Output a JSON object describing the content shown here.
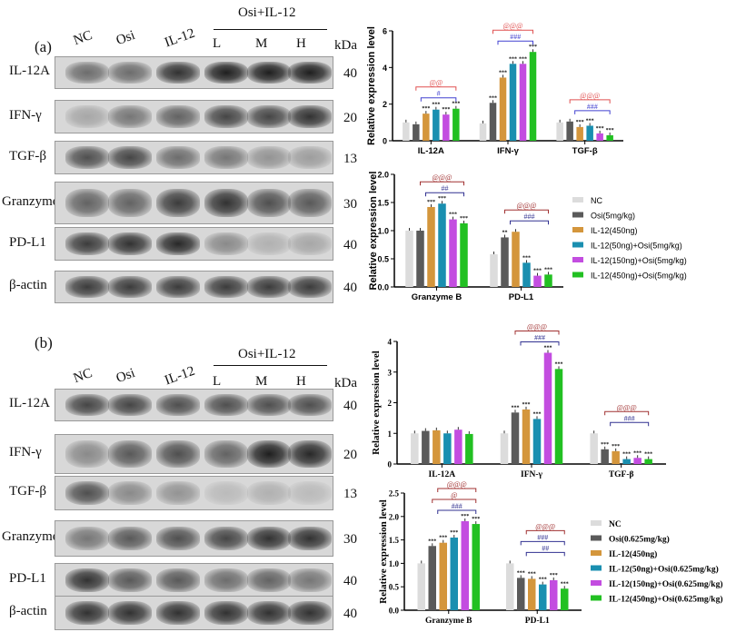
{
  "panels": [
    {
      "tag": "(a)",
      "lanes": [
        "NC",
        "Osi",
        "IL-12",
        "L",
        "M",
        "H"
      ],
      "group_header": "Osi+IL-12",
      "kda": "kDa",
      "rows": [
        {
          "name": "IL-12A",
          "kda": "40",
          "intensity": [
            0.55,
            0.55,
            0.85,
            0.95,
            0.95,
            0.95
          ]
        },
        {
          "name": "IFN-γ",
          "kda": "20",
          "intensity": [
            0.25,
            0.5,
            0.6,
            0.75,
            0.75,
            0.85
          ]
        },
        {
          "name": "TGF-β",
          "kda": "13",
          "intensity": [
            0.7,
            0.75,
            0.55,
            0.5,
            0.35,
            0.3
          ]
        },
        {
          "name": "Granzyme B",
          "kda": "30",
          "intensity": [
            0.6,
            0.6,
            0.8,
            0.85,
            0.7,
            0.65
          ]
        },
        {
          "name": "PD-L1",
          "kda": "40",
          "intensity": [
            0.8,
            0.85,
            0.9,
            0.4,
            0.2,
            0.25
          ]
        },
        {
          "name": "β-actin",
          "kda": "40",
          "intensity": [
            0.8,
            0.8,
            0.8,
            0.8,
            0.8,
            0.8
          ]
        }
      ]
    },
    {
      "tag": "(b)",
      "lanes": [
        "NC",
        "Osi",
        "IL-12",
        "L",
        "M",
        "H"
      ],
      "group_header": "Osi+IL-12",
      "kda": "kDa",
      "rows": [
        {
          "name": "IL-12A",
          "kda": "40",
          "intensity": [
            0.75,
            0.75,
            0.7,
            0.7,
            0.7,
            0.7
          ]
        },
        {
          "name": "IFN-γ",
          "kda": "20",
          "intensity": [
            0.4,
            0.65,
            0.7,
            0.6,
            0.95,
            0.9
          ]
        },
        {
          "name": "TGF-β",
          "kda": "13",
          "intensity": [
            0.7,
            0.4,
            0.35,
            0.15,
            0.2,
            0.15
          ]
        },
        {
          "name": "Granzyme B",
          "kda": "30",
          "intensity": [
            0.5,
            0.65,
            0.7,
            0.75,
            0.85,
            0.85
          ]
        },
        {
          "name": "PD-L1",
          "kda": "40",
          "intensity": [
            0.85,
            0.65,
            0.65,
            0.55,
            0.6,
            0.5
          ]
        },
        {
          "name": "β-actin",
          "kda": "40",
          "intensity": [
            0.85,
            0.85,
            0.85,
            0.85,
            0.85,
            0.85
          ]
        }
      ]
    }
  ],
  "colors": [
    "#dcdcdc",
    "#5a5a5a",
    "#d4963c",
    "#1a8fb0",
    "#c34de0",
    "#22c022"
  ],
  "chart_data": [
    {
      "type": "bar",
      "ylabel": "Relative expression level",
      "ylim": [
        0,
        6
      ],
      "yticks": [
        "0",
        "2",
        "4",
        "6"
      ],
      "categories": [
        "IL-12A",
        "IFN-γ",
        "TGF-β"
      ],
      "series": [
        [
          1,
          0.9,
          1.48,
          1.7,
          1.43,
          1.75
        ],
        [
          0.95,
          2.07,
          3.45,
          4.2,
          4.2,
          4.85
        ],
        [
          1,
          1.05,
          0.75,
          0.82,
          0.4,
          0.3
        ]
      ],
      "stars": [
        [
          "",
          "",
          "***",
          "***",
          "***",
          "***"
        ],
        [
          "",
          "***",
          "***",
          "***",
          "***",
          "***"
        ],
        [
          "",
          "",
          "***",
          "***",
          "***",
          "***"
        ]
      ],
      "brackets": [
        [
          {
            "label": "@@",
            "color": "#e05050"
          },
          {
            "label": "#",
            "color": "#4040d0"
          }
        ],
        [
          {
            "label": "@@@",
            "color": "#e05050"
          },
          {
            "label": "###",
            "color": "#4040d0"
          }
        ],
        [
          {
            "label": "@@@",
            "color": "#e05050"
          },
          {
            "label": "###",
            "color": "#4040d0"
          }
        ]
      ]
    },
    {
      "type": "bar",
      "ylabel": "Relative expression level",
      "ylim": [
        0,
        2
      ],
      "yticks": [
        "0.0",
        "0.5",
        "1.0",
        "1.5",
        "2.0"
      ],
      "categories": [
        "Granzyme B",
        "PD-L1"
      ],
      "series": [
        [
          1,
          1,
          1.42,
          1.48,
          1.2,
          1.13
        ],
        [
          0.58,
          0.88,
          0.98,
          0.43,
          0.2,
          0.22
        ]
      ],
      "stars": [
        [
          "",
          "",
          "***",
          "***",
          "***",
          "***"
        ],
        [
          "",
          "**",
          "",
          "***",
          "***",
          "***"
        ]
      ],
      "brackets": [
        [
          {
            "label": "@@@",
            "color": "#a03030"
          },
          {
            "label": "##",
            "color": "#303090"
          }
        ],
        [
          {
            "label": "@@@",
            "color": "#a03030"
          },
          {
            "label": "###",
            "color": "#303090"
          }
        ]
      ],
      "legend": [
        "NC",
        "Osi(5mg/kg)",
        "IL-12(450ng)",
        "IL-12(50ng)+Osi(5mg/kg)",
        "IL-12(150ng)+Osi(5mg/kg)",
        "IL-12(450ng)+Osi(5mg/kg)"
      ],
      "legend_position": "right"
    },
    {
      "type": "bar",
      "ylabel": "Relative expression level",
      "ylim": [
        0,
        4
      ],
      "yticks": [
        "0",
        "1",
        "2",
        "3",
        "4"
      ],
      "categories": [
        "IL-12A",
        "IFN-γ",
        "TGF-β"
      ],
      "series": [
        [
          1,
          1.08,
          1.1,
          1.0,
          1.12,
          0.98
        ],
        [
          1,
          1.68,
          1.78,
          1.47,
          3.63,
          3.1
        ],
        [
          1,
          0.48,
          0.42,
          0.16,
          0.2,
          0.16
        ]
      ],
      "stars": [
        [
          "",
          "",
          "",
          "",
          "",
          ""
        ],
        [
          "",
          "***",
          "***",
          "***",
          "***",
          "***"
        ],
        [
          "",
          "***",
          "***",
          "***",
          "***",
          "***"
        ]
      ],
      "brackets": [
        [],
        [
          {
            "label": "@@@",
            "color": "#a03030"
          },
          {
            "label": "###",
            "color": "#303090"
          }
        ],
        [
          {
            "label": "@@@",
            "color": "#a03030"
          },
          {
            "label": "###",
            "color": "#303090"
          }
        ]
      ]
    },
    {
      "type": "bar",
      "ylabel": "Relative expression level",
      "ylim": [
        0,
        2.5
      ],
      "yticks": [
        "0.0",
        "0.5",
        "1.0",
        "1.5",
        "2.0",
        "2.5"
      ],
      "categories": [
        "Granzyme B",
        "PD-L1"
      ],
      "series": [
        [
          1,
          1.37,
          1.44,
          1.55,
          1.9,
          1.84
        ],
        [
          1,
          0.69,
          0.67,
          0.55,
          0.64,
          0.46
        ]
      ],
      "stars": [
        [
          "",
          "***",
          "***",
          "***",
          "***",
          "***"
        ],
        [
          "",
          "***",
          "***",
          "***",
          "***",
          "***"
        ]
      ],
      "brackets": [
        [
          {
            "label": "@@@",
            "color": "#a03030"
          },
          {
            "label": "@",
            "color": "#a03030"
          },
          {
            "label": "###",
            "color": "#303090"
          }
        ],
        [
          {
            "label": "@@@",
            "color": "#a03030"
          },
          {
            "label": "###",
            "color": "#303090"
          },
          {
            "label": "##",
            "color": "#303090"
          }
        ]
      ],
      "legend": [
        "NC",
        "Osi(0.625mg/kg)",
        "IL-12(450ng)",
        "IL-12(50ng)+Osi(0.625mg/kg)",
        "IL-12(150ng)+Osi(0.625mg/kg)",
        "IL-12(450ng)+Osi(0.625mg/kg)"
      ],
      "legend_position": "right"
    }
  ]
}
